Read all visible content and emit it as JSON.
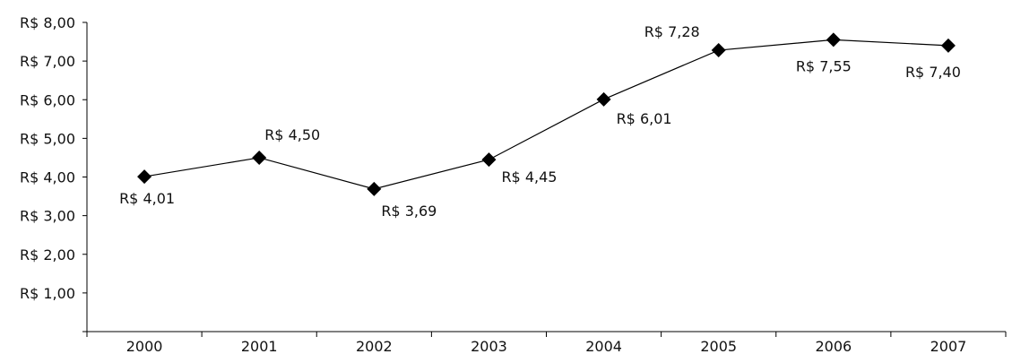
{
  "chart_data": {
    "type": "line",
    "categories": [
      "2000",
      "2001",
      "2002",
      "2003",
      "2004",
      "2005",
      "2006",
      "2007"
    ],
    "series": [
      {
        "values": [
          4.01,
          4.5,
          3.69,
          4.45,
          6.01,
          7.28,
          7.55,
          7.4
        ]
      }
    ],
    "data_labels": [
      "R$ 4,01",
      "R$ 4,50",
      "R$ 3,69",
      "R$ 4,45",
      "R$ 6,01",
      "R$ 7,28",
      "R$ 7,55",
      "R$ 7,40"
    ],
    "y_ticks": [
      {
        "value": 1,
        "label": "R$ 1,00"
      },
      {
        "value": 2,
        "label": "R$ 2,00"
      },
      {
        "value": 3,
        "label": "R$ 3,00"
      },
      {
        "value": 4,
        "label": "R$ 4,00"
      },
      {
        "value": 5,
        "label": "R$ 5,00"
      },
      {
        "value": 6,
        "label": "R$ 6,00"
      },
      {
        "value": 7,
        "label": "R$ 7,00"
      },
      {
        "value": 8,
        "label": "R$ 8,00"
      }
    ],
    "ylim": [
      0,
      8
    ],
    "title": "",
    "xlabel": "",
    "ylabel": "",
    "grid": false,
    "legend": "none",
    "marker": "diamond",
    "line_color": "#000000"
  }
}
